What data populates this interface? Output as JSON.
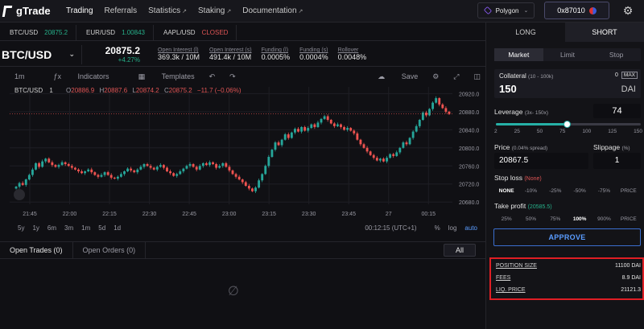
{
  "app": {
    "name": "gTrade"
  },
  "nav": [
    {
      "label": "Trading",
      "active": true,
      "external": false
    },
    {
      "label": "Referrals",
      "active": false,
      "external": false
    },
    {
      "label": "Statistics",
      "active": false,
      "external": true
    },
    {
      "label": "Staking",
      "active": false,
      "external": true
    },
    {
      "label": "Documentation",
      "active": false,
      "external": true
    }
  ],
  "network": {
    "label": "Polygon",
    "icon": "polygon-icon"
  },
  "wallet": {
    "address": "0x87010"
  },
  "pairs": [
    {
      "name": "BTC/USD",
      "value": "20875.2",
      "color": "#26b08a"
    },
    {
      "name": "EUR/USD",
      "value": "1.00843",
      "color": "#26b08a"
    },
    {
      "name": "AAPL/USD",
      "value": "CLOSED",
      "color": "#e05555"
    }
  ],
  "market": {
    "symbol": "BTC/USD",
    "price": "20875.2",
    "change": "+4.27%",
    "stats": [
      {
        "label": "Open Interest (l)",
        "value": "369.3k / 10M",
        "color": "#e6e6e6"
      },
      {
        "label": "Open Interest (s)",
        "value": "491.4k / 10M",
        "color": "#e6e6e6"
      },
      {
        "label": "Funding (l)",
        "value": "0.0005%",
        "color": "#26b08a"
      },
      {
        "label": "Funding (s)",
        "value": "0.0004%",
        "color": "#e05555"
      },
      {
        "label": "Rollover",
        "value": "0.0048%",
        "color": "#e05555"
      }
    ]
  },
  "chart_toolbar": {
    "interval": "1m",
    "indicators": "Indicators",
    "templates": "Templates",
    "save": "Save"
  },
  "chart_legend": {
    "symbol": "BTC/USD",
    "interval": "1",
    "o": "20886.9",
    "h": "20887.6",
    "l": "20874.2",
    "c": "20875.2",
    "chg": "−11.7 (−0.06%)"
  },
  "chart_data": {
    "type": "candlestick",
    "x_tick_labels": [
      "21:45",
      "22:00",
      "22:15",
      "22:30",
      "22:45",
      "23:00",
      "23:15",
      "23:30",
      "23:45",
      "27",
      "00:15"
    ],
    "y_tick_labels": [
      "20920.0",
      "20880.0",
      "20840.0",
      "20800.0",
      "20760.0",
      "20720.0",
      "20680.0"
    ],
    "ylim": [
      20675,
      20935
    ],
    "up_color": "#26a69a",
    "down_color": "#ef5350",
    "closes": [
      20714,
      20722,
      20718,
      20730,
      20740,
      20752,
      20766,
      20758,
      20770,
      20776,
      20768,
      20762,
      20758,
      20762,
      20768,
      20764,
      20760,
      20756,
      20752,
      20748,
      20744,
      20748,
      20752,
      20746,
      20740,
      20736,
      20740,
      20746,
      20740,
      20734,
      20732,
      20736,
      20742,
      20748,
      20754,
      20750,
      20746,
      20752,
      20758,
      20764,
      20760,
      20756,
      20752,
      20758,
      20762,
      20756,
      20748,
      20744,
      20738,
      20742,
      20748,
      20754,
      20760,
      20764,
      20758,
      20752,
      20760,
      20766,
      20762,
      20768,
      20764,
      20756,
      20760,
      20766,
      20758,
      20750,
      20742,
      20736,
      20730,
      20724,
      20716,
      20710,
      20704,
      20712,
      20728,
      20742,
      20760,
      20780,
      20796,
      20812,
      20806,
      20818,
      20830,
      20822,
      20834,
      20842,
      20836,
      20846,
      20838,
      20844,
      20852,
      20846,
      20856,
      20864,
      20870,
      20862,
      20854,
      20848,
      20852,
      20846,
      20840,
      20844,
      20838,
      20832,
      20818,
      20808,
      20800,
      20792,
      20784,
      20778,
      20772,
      20776,
      20770,
      20778,
      20786,
      20782,
      20790,
      20800,
      20812,
      20808,
      20822,
      20836,
      20848,
      20862,
      20878,
      20872,
      20886,
      20900,
      20910,
      20896,
      20888,
      20880,
      20875
    ],
    "last_price": "20875.2"
  },
  "range_bar": {
    "ranges": [
      "5y",
      "1y",
      "6m",
      "3m",
      "1m",
      "5d",
      "1d"
    ],
    "time": "00:12:15 (UTC+1)",
    "pct": "%",
    "log": "log",
    "auto": "auto"
  },
  "trades_tabs": [
    {
      "label": "Open Trades",
      "count": "(0)"
    },
    {
      "label": "Open Orders",
      "count": "(0)"
    }
  ],
  "trades_filter": "All",
  "panel": {
    "side_tabs": [
      "LONG",
      "SHORT"
    ],
    "order_tabs": [
      "Market",
      "Limit",
      "Stop"
    ],
    "collateral": {
      "label": "Collateral",
      "range": "(10 - 100k)",
      "value": "150",
      "balance": "0",
      "max": "MAX",
      "unit": "DAI"
    },
    "leverage": {
      "label": "Leverage",
      "range": "(3x- 150x)",
      "value": "74",
      "fraction": 0.49,
      "ticks": [
        "2",
        "25",
        "50",
        "75",
        "100",
        "125",
        "150"
      ]
    },
    "price": {
      "label": "Price",
      "note": "(0.04% spread)",
      "value": "20867.5"
    },
    "slippage": {
      "label": "Slippage",
      "note": "(%)",
      "value": "1"
    },
    "stop_loss": {
      "label": "Stop loss",
      "note": "(None)",
      "options": [
        "NONE",
        "-10%",
        "-25%",
        "-50%",
        "-75%",
        "PRICE"
      ],
      "selected": 0
    },
    "take_profit": {
      "label": "Take profit",
      "note": "(20585.5)",
      "options": [
        "25%",
        "50%",
        "75%",
        "100%",
        "900%",
        "PRICE"
      ],
      "selected": 3
    },
    "approve": "APPROVE",
    "summary": [
      {
        "label": "POSITION SIZE",
        "value": "11100 DAI"
      },
      {
        "label": "FEES",
        "value": "8.9 DAI"
      },
      {
        "label": "LIQ. PRICE",
        "value": "21121.3"
      }
    ]
  }
}
